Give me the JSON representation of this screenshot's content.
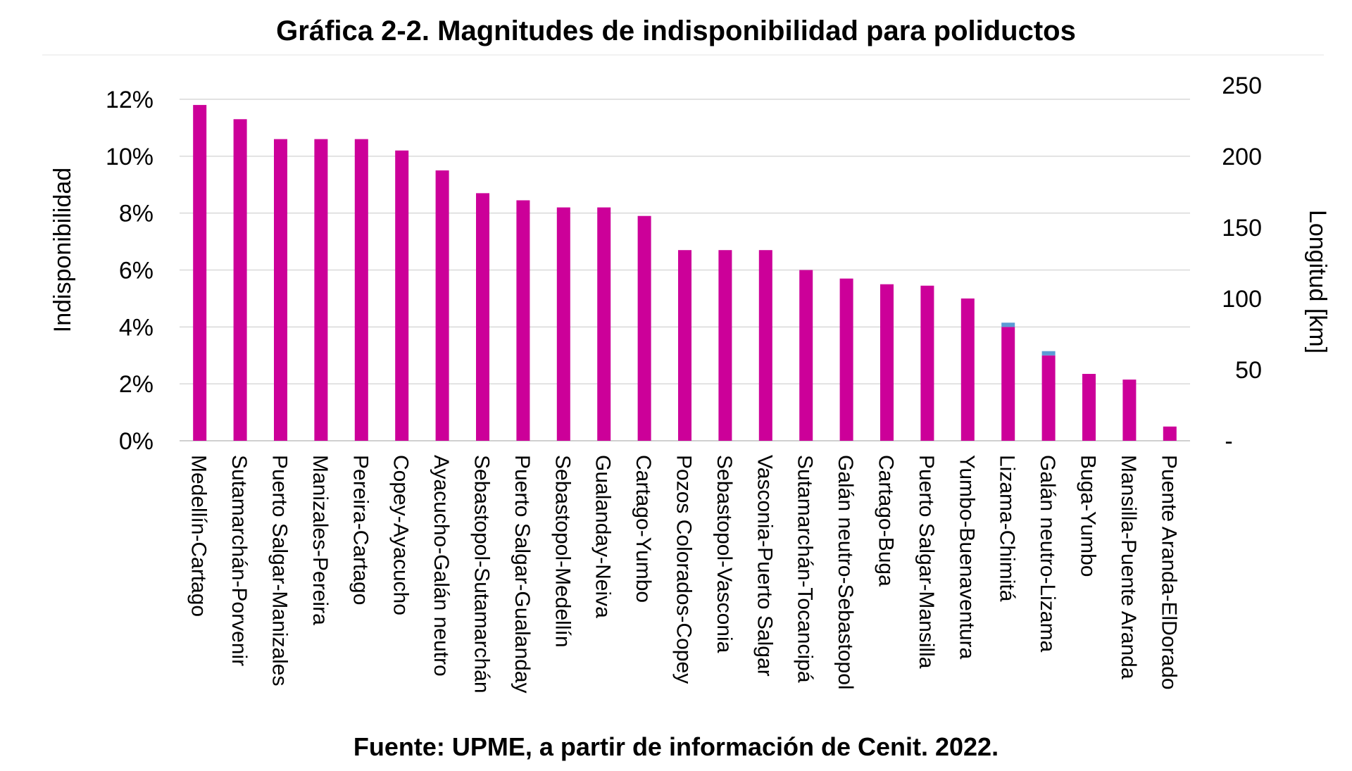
{
  "chart_data": {
    "type": "bar",
    "title": "Gráfica 2-2. Magnitudes de indisponibilidad para poliductos",
    "ylabel": "Indisponibilidad",
    "y2label": "Longitud [km]",
    "ylim": [
      0,
      12
    ],
    "y2lim": [
      0,
      250
    ],
    "yticks": [
      "0%",
      "2%",
      "4%",
      "6%",
      "8%",
      "10%",
      "12%"
    ],
    "y2ticks": [
      "-",
      "50",
      "100",
      "150",
      "200",
      "250"
    ],
    "grid": true,
    "categories": [
      "Medellín-Cartago",
      "Sutamarchán-Porvenir",
      "Puerto Salgar-Manizales",
      "Manizales-Pereira",
      "Pereira-Cartago",
      "Copey-Ayacucho",
      "Ayacucho-Galán neutro",
      "Sebastopol-Sutamarchán",
      "Puerto Salgar-Gualanday",
      "Sebastopol-Medellín",
      "Gualanday-Neiva",
      "Cartago-Yumbo",
      "Pozos Colorados-Copey",
      "Sebastopol-Vasconia",
      "Vasconia-Puerto Salgar",
      "Sutamarchán-Tocancipá",
      "Galán neutro-Sebastopol",
      "Cartago-Buga",
      "Puerto Salgar-Mansilla",
      "Yumbo-Buenaventura",
      "Lizama-Chimitá",
      "Galán neutro-Lizama",
      "Buga-Yumbo",
      "Mansilla-Puente Aranda",
      "Puente Aranda-ElDorado"
    ],
    "series": [
      {
        "color": "#cc0099",
        "values": [
          11.8,
          11.3,
          10.6,
          10.6,
          10.6,
          10.2,
          9.5,
          8.7,
          8.45,
          8.2,
          8.2,
          7.9,
          6.7,
          6.7,
          6.7,
          6.0,
          5.7,
          5.5,
          5.45,
          5.0,
          4.0,
          3.0,
          2.35,
          2.15,
          0.5
        ]
      },
      {
        "color": "#5b9bd5",
        "values": [
          0,
          0,
          0,
          0,
          0,
          0,
          0,
          0,
          0,
          0,
          0,
          0,
          0,
          0,
          0,
          0,
          0,
          0,
          0,
          0,
          0.15,
          0.15,
          0,
          0,
          0
        ]
      }
    ],
    "source": "Fuente: UPME, a partir de información de Cenit. 2022."
  }
}
